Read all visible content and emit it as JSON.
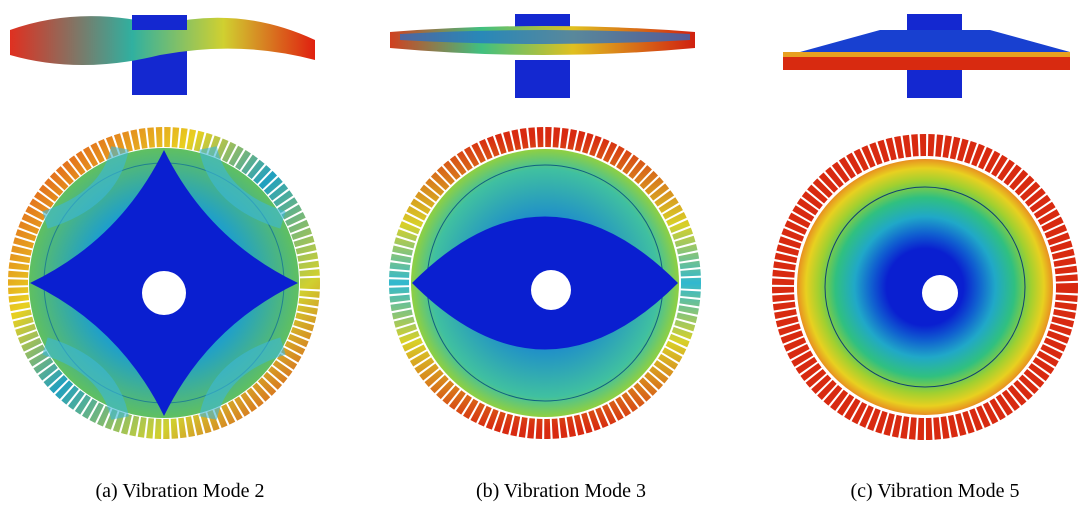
{
  "captions": [
    "(a) Vibration Mode 2",
    "(b) Vibration Mode 3",
    "(c) Vibration Mode 5"
  ]
}
